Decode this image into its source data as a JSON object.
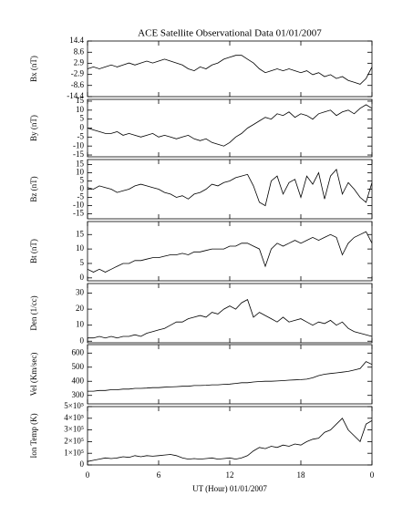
{
  "chart_data": [
    {
      "type": "line",
      "title": "ACE Satellite Observational Data  01/01/2007",
      "ylabel": "Bx (nT)",
      "color": "#000000",
      "x": [
        0,
        0.5,
        1,
        1.5,
        2,
        2.5,
        3,
        3.5,
        4,
        4.5,
        5,
        5.5,
        6,
        6.5,
        7,
        7.5,
        8,
        8.5,
        9,
        9.5,
        10,
        10.5,
        11,
        11.5,
        12,
        12.5,
        13,
        13.5,
        14,
        14.5,
        15,
        15.5,
        16,
        16.5,
        17,
        17.5,
        18,
        18.5,
        19,
        19.5,
        20,
        20.5,
        21,
        21.5,
        22,
        22.5,
        23,
        23.5,
        24
      ],
      "values": [
        0,
        1,
        0,
        1,
        2,
        1,
        2,
        3,
        2,
        3,
        4,
        3,
        4,
        5,
        4,
        3,
        2,
        0,
        -1,
        1,
        0,
        2,
        3,
        5,
        6,
        7,
        7,
        5,
        3,
        0,
        -2,
        -1,
        0,
        -1,
        0,
        -1,
        -2,
        -1,
        -3,
        -2,
        -4,
        -3,
        -5,
        -4,
        -6,
        -7,
        -8,
        -5,
        1
      ],
      "ylim": [
        -14.4,
        14.4
      ],
      "yticks": [
        -14.4,
        -8.6,
        -2.9,
        2.9,
        8.6,
        14.4
      ]
    },
    {
      "type": "line",
      "ylabel": "By (nT)",
      "color": "#000000",
      "x": [
        0,
        0.5,
        1,
        1.5,
        2,
        2.5,
        3,
        3.5,
        4,
        4.5,
        5,
        5.5,
        6,
        6.5,
        7,
        7.5,
        8,
        8.5,
        9,
        9.5,
        10,
        10.5,
        11,
        11.5,
        12,
        12.5,
        13,
        13.5,
        14,
        14.5,
        15,
        15.5,
        16,
        16.5,
        17,
        17.5,
        18,
        18.5,
        19,
        19.5,
        20,
        20.5,
        21,
        21.5,
        22,
        22.5,
        23,
        23.5,
        24
      ],
      "values": [
        0,
        -1,
        -2,
        -3,
        -3,
        -2,
        -4,
        -3,
        -4,
        -5,
        -4,
        -3,
        -5,
        -4,
        -5,
        -6,
        -5,
        -4,
        -6,
        -7,
        -6,
        -8,
        -9,
        -10,
        -8,
        -5,
        -3,
        0,
        2,
        4,
        6,
        5,
        8,
        7,
        9,
        6,
        8,
        7,
        5,
        8,
        9,
        10,
        7,
        9,
        10,
        8,
        11,
        13,
        11
      ],
      "ylim": [
        -16,
        16
      ],
      "yticks": [
        -15,
        -10,
        -5,
        0,
        5,
        10,
        15
      ]
    },
    {
      "type": "line",
      "ylabel": "Bz (nT)",
      "color": "#000000",
      "x": [
        0,
        0.5,
        1,
        1.5,
        2,
        2.5,
        3,
        3.5,
        4,
        4.5,
        5,
        5.5,
        6,
        6.5,
        7,
        7.5,
        8,
        8.5,
        9,
        9.5,
        10,
        10.5,
        11,
        11.5,
        12,
        12.5,
        13,
        13.5,
        14,
        14.5,
        15,
        15.5,
        16,
        16.5,
        17,
        17.5,
        18,
        18.5,
        19,
        19.5,
        20,
        20.5,
        21,
        21.5,
        22,
        22.5,
        23,
        23.5,
        24
      ],
      "values": [
        1,
        0,
        2,
        1,
        0,
        -2,
        -1,
        0,
        2,
        3,
        2,
        1,
        0,
        -2,
        -3,
        -5,
        -4,
        -6,
        -3,
        -2,
        0,
        3,
        2,
        4,
        5,
        7,
        8,
        9,
        2,
        -8,
        -10,
        5,
        8,
        -3,
        4,
        6,
        -5,
        8,
        3,
        10,
        -6,
        8,
        12,
        -3,
        4,
        0,
        -5,
        -8,
        4
      ],
      "ylim": [
        -18,
        18
      ],
      "yticks": [
        -15,
        -10,
        -5,
        0,
        5,
        10,
        15
      ]
    },
    {
      "type": "line",
      "ylabel": "Bt (nT)",
      "color": "#000000",
      "x": [
        0,
        0.5,
        1,
        1.5,
        2,
        2.5,
        3,
        3.5,
        4,
        4.5,
        5,
        5.5,
        6,
        6.5,
        7,
        7.5,
        8,
        8.5,
        9,
        9.5,
        10,
        10.5,
        11,
        11.5,
        12,
        12.5,
        13,
        13.5,
        14,
        14.5,
        15,
        15.5,
        16,
        16.5,
        17,
        17.5,
        18,
        18.5,
        19,
        19.5,
        20,
        20.5,
        21,
        21.5,
        22,
        22.5,
        23,
        23.5,
        24
      ],
      "values": [
        3,
        2,
        3,
        2,
        3,
        4,
        5,
        5,
        6,
        6,
        6.5,
        7,
        7,
        7.5,
        8,
        8,
        8.5,
        8,
        9,
        9,
        9.5,
        10,
        10,
        10,
        11,
        11,
        12,
        12,
        11,
        10,
        4,
        10,
        12,
        11,
        12,
        13,
        12,
        13,
        14,
        13,
        14,
        15,
        14,
        8,
        12,
        14,
        15,
        16,
        12
      ],
      "ylim": [
        -1,
        19.5
      ],
      "yticks": [
        0,
        5,
        10,
        15
      ]
    },
    {
      "type": "line",
      "ylabel": "Den (1/cc)",
      "color": "#000000",
      "x": [
        0,
        0.5,
        1,
        1.5,
        2,
        2.5,
        3,
        3.5,
        4,
        4.5,
        5,
        5.5,
        6,
        6.5,
        7,
        7.5,
        8,
        8.5,
        9,
        9.5,
        10,
        10.5,
        11,
        11.5,
        12,
        12.5,
        13,
        13.5,
        14,
        14.5,
        15,
        15.5,
        16,
        16.5,
        17,
        17.5,
        18,
        18.5,
        19,
        19.5,
        20,
        20.5,
        21,
        21.5,
        22,
        22.5,
        23,
        23.5,
        24
      ],
      "values": [
        2,
        2,
        3,
        2,
        3,
        2,
        3,
        3,
        4,
        3,
        5,
        6,
        7,
        8,
        10,
        12,
        12,
        14,
        15,
        16,
        15,
        18,
        17,
        20,
        22,
        20,
        24,
        26,
        15,
        18,
        16,
        14,
        12,
        15,
        12,
        13,
        14,
        12,
        10,
        12,
        11,
        13,
        10,
        12,
        8,
        6,
        5,
        4,
        3
      ],
      "ylim": [
        -1,
        36
      ],
      "yticks": [
        0,
        10,
        20,
        30
      ]
    },
    {
      "type": "line",
      "ylabel": "Vel (Km/sec)",
      "color": "#000000",
      "x": [
        0,
        0.5,
        1,
        1.5,
        2,
        2.5,
        3,
        3.5,
        4,
        4.5,
        5,
        5.5,
        6,
        6.5,
        7,
        7.5,
        8,
        8.5,
        9,
        9.5,
        10,
        10.5,
        11,
        11.5,
        12,
        12.5,
        13,
        13.5,
        14,
        14.5,
        15,
        15.5,
        16,
        16.5,
        17,
        17.5,
        18,
        18.5,
        19,
        19.5,
        20,
        20.5,
        21,
        21.5,
        22,
        22.5,
        23,
        23.5,
        24
      ],
      "values": [
        330,
        330,
        335,
        335,
        340,
        340,
        345,
        345,
        350,
        350,
        352,
        355,
        355,
        358,
        360,
        362,
        365,
        365,
        370,
        370,
        372,
        375,
        375,
        378,
        380,
        385,
        390,
        390,
        395,
        398,
        400,
        400,
        402,
        405,
        408,
        410,
        412,
        415,
        425,
        440,
        450,
        455,
        460,
        465,
        470,
        480,
        490,
        540,
        520
      ],
      "ylim": [
        240,
        660
      ],
      "yticks": [
        300,
        400,
        500,
        600
      ]
    },
    {
      "type": "line",
      "ylabel": "Ion Temp (K)",
      "xlabel": "UT (Hour)  01/01/2007",
      "color": "#000000",
      "x": [
        0,
        0.5,
        1,
        1.5,
        2,
        2.5,
        3,
        3.5,
        4,
        4.5,
        5,
        5.5,
        6,
        6.5,
        7,
        7.5,
        8,
        8.5,
        9,
        9.5,
        10,
        10.5,
        11,
        11.5,
        12,
        12.5,
        13,
        13.5,
        14,
        14.5,
        15,
        15.5,
        16,
        16.5,
        17,
        17.5,
        18,
        18.5,
        19,
        19.5,
        20,
        20.5,
        21,
        21.5,
        22,
        22.5,
        23,
        23.5,
        24
      ],
      "values": [
        30000,
        40000,
        50000,
        60000,
        55000,
        60000,
        70000,
        65000,
        80000,
        70000,
        80000,
        75000,
        80000,
        85000,
        90000,
        80000,
        60000,
        50000,
        55000,
        50000,
        55000,
        60000,
        50000,
        55000,
        60000,
        50000,
        60000,
        80000,
        120000,
        150000,
        140000,
        160000,
        150000,
        170000,
        160000,
        180000,
        170000,
        200000,
        220000,
        230000,
        280000,
        300000,
        350000,
        400000,
        300000,
        250000,
        200000,
        350000,
        380000
      ],
      "ylim": [
        0,
        500000
      ],
      "yticks": [
        0,
        {
          "value": 100000,
          "label": "1×10⁵"
        },
        {
          "value": 200000,
          "label": "2×10⁵"
        },
        {
          "value": 300000,
          "label": "3×10⁵"
        },
        {
          "value": 400000,
          "label": "4×10⁵"
        },
        {
          "value": 500000,
          "label": "5×10⁵"
        }
      ],
      "xlim": [
        0,
        24
      ],
      "xticks": [
        0,
        6,
        12,
        18,
        {
          "value": 24,
          "label": "0"
        }
      ]
    }
  ]
}
